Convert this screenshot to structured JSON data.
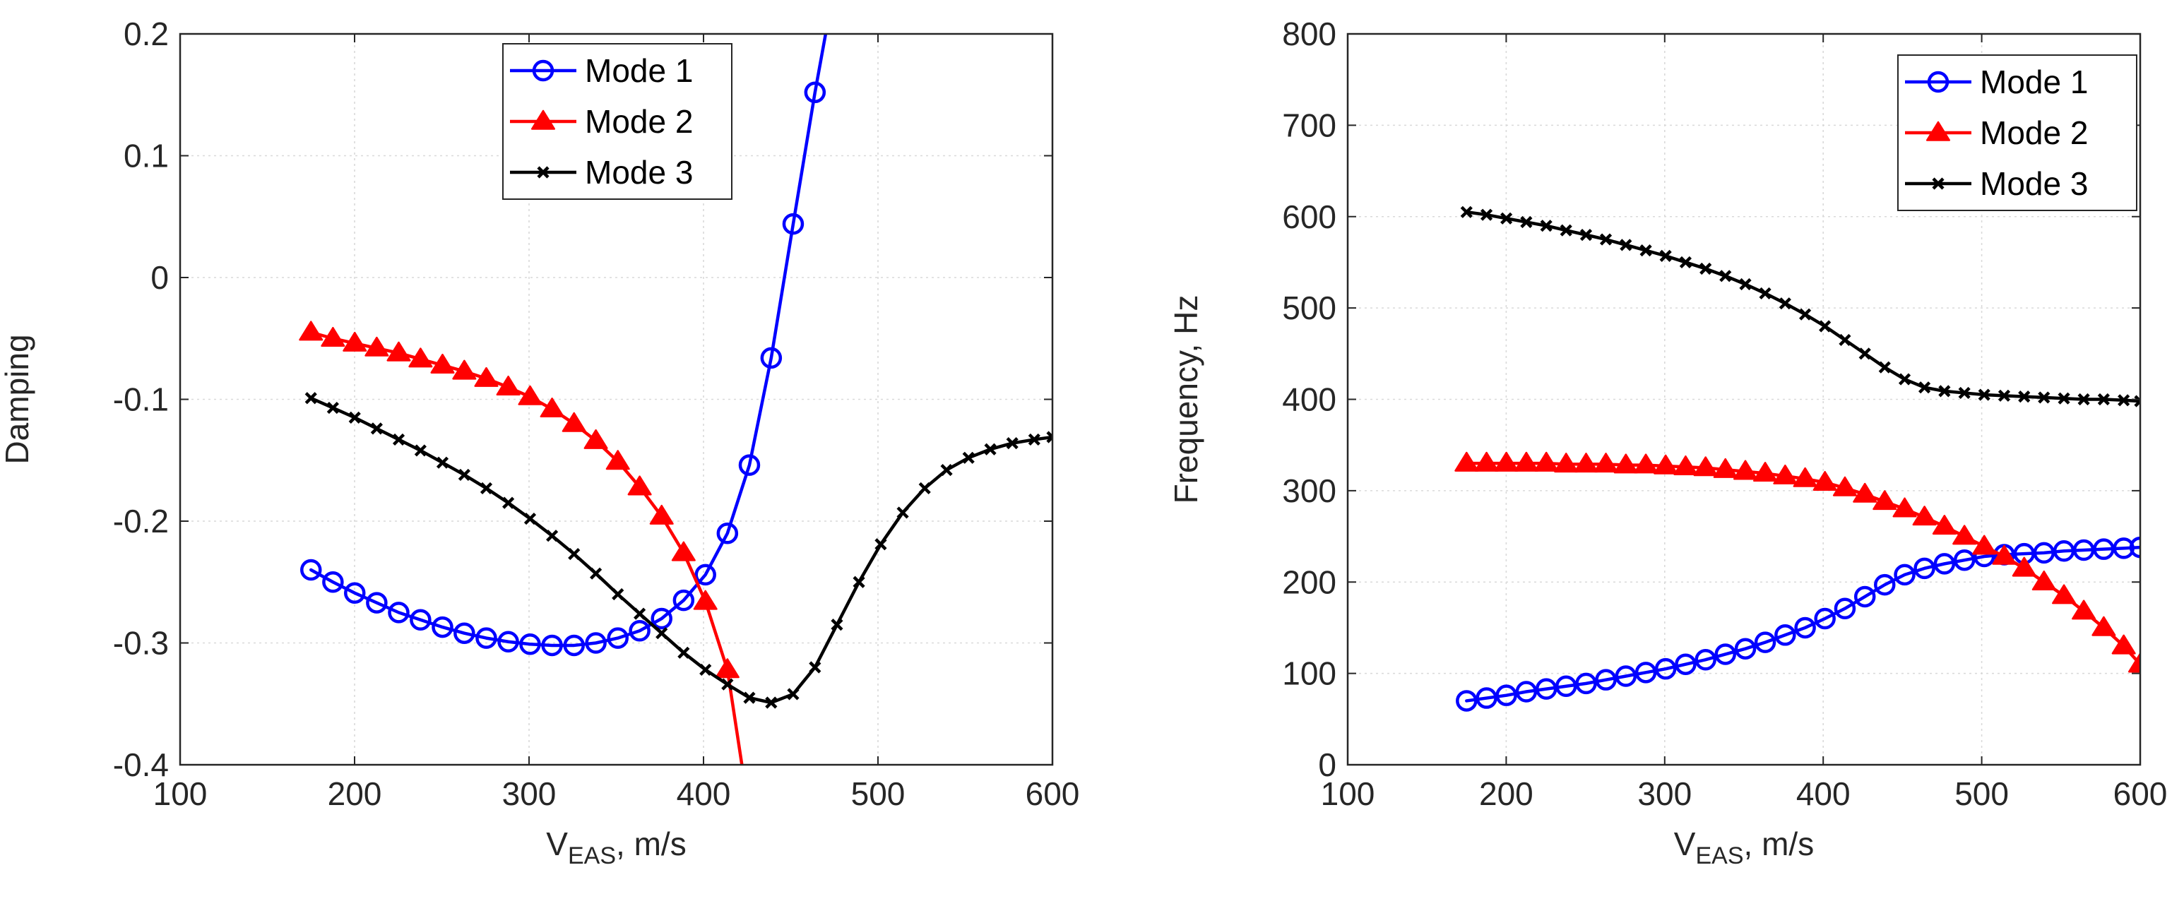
{
  "chart_data": [
    {
      "type": "line",
      "title": "",
      "xlabel_main": "V",
      "xlabel_sub": "EAS",
      "xlabel_rest": ", m/s",
      "ylabel": "Damping",
      "xlim": [
        100,
        600
      ],
      "ylim": [
        -0.4,
        0.2
      ],
      "xticks": [
        100,
        200,
        300,
        400,
        500,
        600
      ],
      "yticks": [
        -0.4,
        -0.3,
        -0.2,
        -0.1,
        0,
        0.1,
        0.2
      ],
      "ytick_labels": [
        "-0.4",
        "-0.3",
        "-0.2",
        "-0.1",
        "0",
        "0.1",
        "0.2"
      ],
      "grid": true,
      "legend_position": "top-center",
      "series": [
        {
          "name": "Mode 1",
          "color": "#0000ff",
          "marker": "circle",
          "x": [
            175,
            187.6,
            200.1,
            212.7,
            225.3,
            237.8,
            250.4,
            262.9,
            275.5,
            288.1,
            300.6,
            313.2,
            325.8,
            338.3,
            350.9,
            363.4,
            376,
            388.6,
            401.1,
            413.7,
            426.3,
            438.8,
            451.4,
            463.9
          ],
          "y": [
            -0.24,
            -0.25,
            -0.259,
            -0.267,
            -0.275,
            -0.281,
            -0.287,
            -0.292,
            -0.296,
            -0.299,
            -0.301,
            -0.302,
            -0.302,
            -0.3,
            -0.296,
            -0.29,
            -0.28,
            -0.265,
            -0.244,
            -0.21,
            -0.154,
            -0.066,
            0.044,
            0.152
          ],
          "line_extension": [
            [
              470,
              0.2
            ]
          ]
        },
        {
          "name": "Mode 2",
          "color": "#ff0000",
          "marker": "triangle",
          "x": [
            175,
            187.6,
            200.1,
            212.7,
            225.3,
            237.8,
            250.4,
            262.9,
            275.5,
            288.1,
            300.6,
            313.2,
            325.8,
            338.3,
            350.9,
            363.4,
            376,
            388.6,
            401.1,
            413.7
          ],
          "y": [
            -0.045,
            -0.05,
            -0.054,
            -0.058,
            -0.062,
            -0.067,
            -0.072,
            -0.077,
            -0.083,
            -0.09,
            -0.098,
            -0.108,
            -0.12,
            -0.134,
            -0.151,
            -0.172,
            -0.196,
            -0.226,
            -0.266,
            -0.322
          ],
          "line_extension": [
            [
              422,
              -0.4
            ]
          ]
        },
        {
          "name": "Mode 3",
          "color": "#000000",
          "marker": "x",
          "x": [
            175,
            187.6,
            200.1,
            212.7,
            225.3,
            237.8,
            250.4,
            262.9,
            275.5,
            288.1,
            300.6,
            313.2,
            325.8,
            338.3,
            350.9,
            363.4,
            376,
            388.6,
            401.1,
            413.7,
            426.3,
            438.8,
            451.4,
            463.9,
            476.5,
            489.1,
            501.6,
            514.2,
            526.8,
            539.3,
            551.9,
            564.4,
            577,
            589.6,
            600
          ],
          "y": [
            -0.099,
            -0.107,
            -0.115,
            -0.124,
            -0.133,
            -0.142,
            -0.152,
            -0.162,
            -0.173,
            -0.185,
            -0.198,
            -0.212,
            -0.227,
            -0.243,
            -0.26,
            -0.276,
            -0.292,
            -0.308,
            -0.322,
            -0.334,
            -0.345,
            -0.349,
            -0.342,
            -0.32,
            -0.285,
            -0.25,
            -0.219,
            -0.193,
            -0.173,
            -0.158,
            -0.148,
            -0.141,
            -0.136,
            -0.133,
            -0.131
          ]
        }
      ]
    },
    {
      "type": "line",
      "title": "",
      "xlabel_main": "V",
      "xlabel_sub": "EAS",
      "xlabel_rest": ", m/s",
      "ylabel": "Frequency, Hz",
      "xlim": [
        100,
        600
      ],
      "ylim": [
        0,
        800
      ],
      "xticks": [
        100,
        200,
        300,
        400,
        500,
        600
      ],
      "yticks": [
        0,
        100,
        200,
        300,
        400,
        500,
        600,
        700,
        800
      ],
      "ytick_labels": [
        "0",
        "100",
        "200",
        "300",
        "400",
        "500",
        "600",
        "700",
        "800"
      ],
      "grid": true,
      "legend_position": "top-right",
      "series": [
        {
          "name": "Mode 1",
          "color": "#0000ff",
          "marker": "circle",
          "x": [
            175,
            187.6,
            200.1,
            212.7,
            225.3,
            237.8,
            250.4,
            262.9,
            275.5,
            288.1,
            300.6,
            313.2,
            325.8,
            338.3,
            350.9,
            363.4,
            376,
            388.6,
            401.1,
            413.7,
            426.3,
            438.8,
            451.4,
            463.9,
            476.5,
            489.1,
            501.6,
            514.2,
            526.8,
            539.3,
            551.9,
            564.4,
            577,
            589.6,
            600
          ],
          "y": [
            70,
            73,
            76,
            80,
            83,
            86,
            89,
            93,
            97,
            101,
            105,
            110,
            115,
            121,
            127,
            134,
            142,
            150,
            160,
            171,
            184,
            197,
            208,
            215,
            220,
            224,
            228,
            230,
            231,
            232,
            234,
            235,
            236,
            237,
            238
          ]
        },
        {
          "name": "Mode 2",
          "color": "#ff0000",
          "marker": "triangle",
          "x": [
            175,
            187.6,
            200.1,
            212.7,
            225.3,
            237.8,
            250.4,
            262.9,
            275.5,
            288.1,
            300.6,
            313.2,
            325.8,
            338.3,
            350.9,
            363.4,
            376,
            388.6,
            401.1,
            413.7,
            426.3,
            438.8,
            451.4,
            463.9,
            476.5,
            489.1,
            501.6,
            514.2,
            526.8,
            539.3,
            551.9,
            564.4,
            577,
            589.6,
            600
          ],
          "y": [
            330,
            330,
            330,
            330,
            330,
            329,
            329,
            329,
            328,
            328,
            327,
            326,
            325,
            323,
            321,
            319,
            316,
            313,
            309,
            303,
            296,
            288,
            280,
            271,
            261,
            250,
            239,
            228,
            215,
            200,
            185,
            168,
            150,
            130,
            110
          ]
        },
        {
          "name": "Mode 3",
          "color": "#000000",
          "marker": "x",
          "x": [
            175,
            187.6,
            200.1,
            212.7,
            225.3,
            237.8,
            250.4,
            262.9,
            275.5,
            288.1,
            300.6,
            313.2,
            325.8,
            338.3,
            350.9,
            363.4,
            376,
            388.6,
            401.1,
            413.7,
            426.3,
            438.8,
            451.4,
            463.9,
            476.5,
            489.1,
            501.6,
            514.2,
            526.8,
            539.3,
            551.9,
            564.4,
            577,
            589.6,
            600
          ],
          "y": [
            605,
            602,
            598,
            594,
            590,
            585,
            580,
            575,
            569,
            563,
            557,
            550,
            543,
            535,
            526,
            516,
            505,
            493,
            480,
            465,
            450,
            435,
            422,
            413,
            409,
            407,
            405,
            404,
            403,
            402,
            401,
            400,
            400,
            399,
            398
          ]
        }
      ]
    }
  ]
}
